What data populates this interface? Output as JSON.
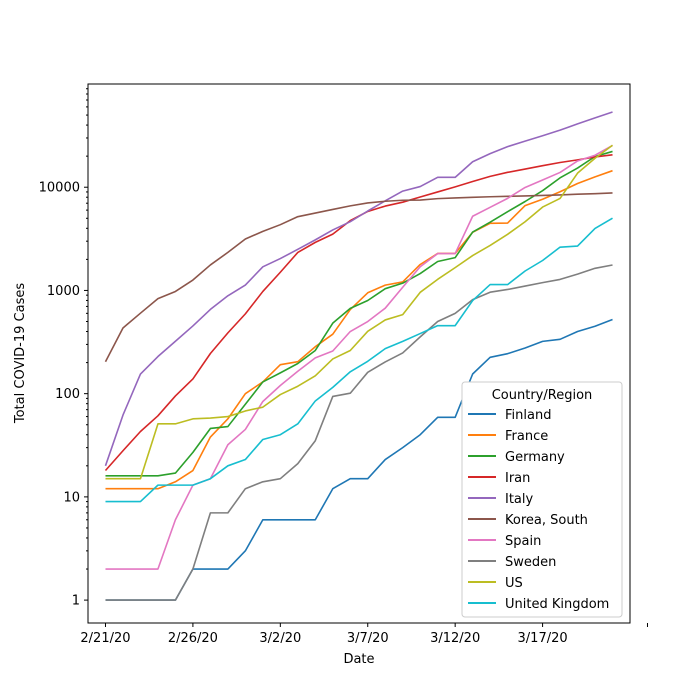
{
  "chart_data": {
    "type": "line",
    "title": "",
    "xlabel": "Date",
    "ylabel": "Total COVID-19 Cases",
    "yscale": "log",
    "ylim": [
      0.6,
      100000
    ],
    "x_range": [
      "2/20/20",
      "3/22/20"
    ],
    "x_start": "2/21/20",
    "xticks": [
      "2/21/20",
      "2/26/20",
      "3/2/20",
      "3/7/20",
      "3/12/20",
      "3/17/20"
    ],
    "yticks": [
      {
        "value": 1,
        "label": "1"
      },
      {
        "value": 10,
        "label": "10"
      },
      {
        "value": 100,
        "label": "100"
      },
      {
        "value": 1000,
        "label": "1000"
      },
      {
        "value": 10000,
        "label": "10000"
      }
    ],
    "grid": false,
    "legend": {
      "title": "Country/Region",
      "position": "lower-right"
    },
    "series": [
      {
        "name": "Finland",
        "color": "#1f77b4",
        "values": [
          1,
          1,
          1,
          1,
          1,
          2,
          2,
          2,
          3,
          6,
          6,
          6,
          6,
          12,
          15,
          15,
          23,
          30,
          40,
          59,
          59,
          155,
          225,
          244,
          277,
          321,
          336,
          400,
          450,
          523
        ]
      },
      {
        "name": "France",
        "color": "#ff7f0e",
        "values": [
          12,
          12,
          12,
          12,
          14,
          18,
          38,
          57,
          100,
          130,
          191,
          204,
          285,
          377,
          653,
          949,
          1126,
          1209,
          1784,
          2281,
          2281,
          3661,
          4469,
          4499,
          6633,
          7652,
          9043,
          10871,
          12612,
          14459
        ]
      },
      {
        "name": "Germany",
        "color": "#2ca02c",
        "values": [
          16,
          16,
          16,
          16,
          17,
          27,
          46,
          48,
          79,
          130,
          159,
          196,
          262,
          482,
          670,
          799,
          1040,
          1176,
          1457,
          1908,
          2078,
          3675,
          4585,
          5795,
          7272,
          9257,
          12327,
          15320,
          19848,
          22213
        ]
      },
      {
        "name": "Iran",
        "color": "#d62728",
        "values": [
          18,
          28,
          43,
          61,
          95,
          139,
          245,
          388,
          593,
          978,
          1501,
          2336,
          2922,
          3513,
          4747,
          5823,
          6566,
          7161,
          8042,
          9000,
          10075,
          11364,
          12729,
          13938,
          14991,
          16169,
          17361,
          18407,
          19644,
          20610
        ]
      },
      {
        "name": "Italy",
        "color": "#9467bd",
        "values": [
          20,
          62,
          155,
          229,
          322,
          453,
          655,
          888,
          1128,
          1694,
          2036,
          2502,
          3089,
          3858,
          4636,
          5883,
          7375,
          9172,
          10149,
          12462,
          12462,
          17660,
          21157,
          24747,
          27980,
          31506,
          35713,
          41035,
          47021,
          53578
        ]
      },
      {
        "name": "Korea, South",
        "color": "#8c564b",
        "values": [
          204,
          433,
          602,
          833,
          977,
          1261,
          1766,
          2337,
          3150,
          3736,
          4335,
          5186,
          5621,
          6088,
          6593,
          7041,
          7314,
          7478,
          7513,
          7755,
          7869,
          7979,
          8086,
          8162,
          8236,
          8320,
          8413,
          8565,
          8652,
          8799
        ]
      },
      {
        "name": "Spain",
        "color": "#e377c2",
        "values": [
          2,
          2,
          2,
          2,
          6,
          13,
          15,
          32,
          45,
          84,
          120,
          165,
          222,
          259,
          400,
          500,
          673,
          1073,
          1695,
          2277,
          2277,
          5232,
          6391,
          7798,
          9942,
          11748,
          13910,
          17963,
          20410,
          25374
        ]
      },
      {
        "name": "Sweden",
        "color": "#7f7f7f",
        "values": [
          1,
          1,
          1,
          1,
          1,
          2,
          7,
          7,
          12,
          14,
          15,
          21,
          35,
          94,
          101,
          161,
          203,
          248,
          355,
          500,
          599,
          814,
          961,
          1022,
          1103,
          1190,
          1279,
          1439,
          1639,
          1763
        ]
      },
      {
        "name": "US",
        "color": "#bcbd22",
        "values": [
          15,
          15,
          15,
          51,
          51,
          57,
          58,
          60,
          68,
          74,
          98,
          118,
          149,
          217,
          262,
          402,
          518,
          583,
          959,
          1281,
          1663,
          2179,
          2727,
          3499,
          4632,
          6421,
          7786,
          13680,
          19101,
          25493
        ]
      },
      {
        "name": "United Kingdom",
        "color": "#17becf",
        "values": [
          9,
          9,
          9,
          13,
          13,
          13,
          15,
          20,
          23,
          36,
          40,
          51,
          85,
          115,
          163,
          206,
          273,
          321,
          382,
          456,
          456,
          798,
          1140,
          1140,
          1543,
          1950,
          2626,
          2689,
          3983,
          5018
        ]
      }
    ]
  }
}
